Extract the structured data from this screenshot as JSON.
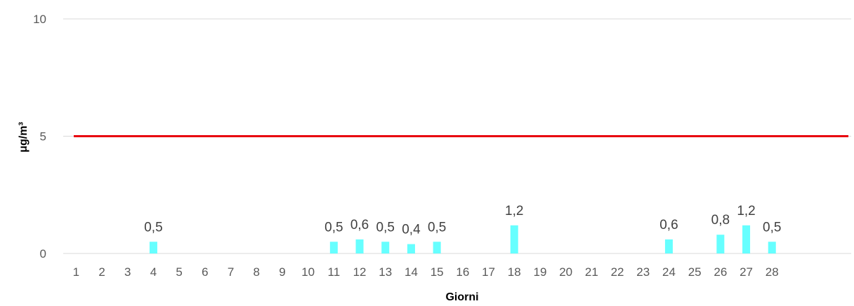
{
  "chart_data": {
    "type": "bar",
    "title": "",
    "xlabel": "Giorni",
    "ylabel": "μg/m³",
    "ylim": [
      0,
      10
    ],
    "yticks": [
      "0",
      "5",
      "10"
    ],
    "categories": [
      "1",
      "2",
      "3",
      "4",
      "5",
      "6",
      "7",
      "8",
      "9",
      "10",
      "11",
      "12",
      "13",
      "14",
      "15",
      "16",
      "17",
      "18",
      "19",
      "20",
      "21",
      "22",
      "23",
      "24",
      "25",
      "26",
      "27",
      "28"
    ],
    "values": [
      null,
      null,
      null,
      0.5,
      null,
      null,
      null,
      null,
      null,
      null,
      0.5,
      0.6,
      0.5,
      0.4,
      0.5,
      null,
      null,
      1.2,
      null,
      null,
      null,
      null,
      null,
      0.6,
      null,
      0.8,
      1.2,
      0.5
    ],
    "value_labels": [
      "",
      "",
      "",
      "0,5",
      "",
      "",
      "",
      "",
      "",
      "",
      "0,5",
      "0,6",
      "0,5",
      "0,4",
      "0,5",
      "",
      "",
      "1,2",
      "",
      "",
      "",
      "",
      "",
      "0,6",
      "",
      "0,8",
      "1,2",
      "0,5"
    ],
    "limit_line": {
      "value": 5,
      "color": "#e8000b"
    },
    "bar_color": "#66ffff",
    "grid": true,
    "legend": "none"
  }
}
